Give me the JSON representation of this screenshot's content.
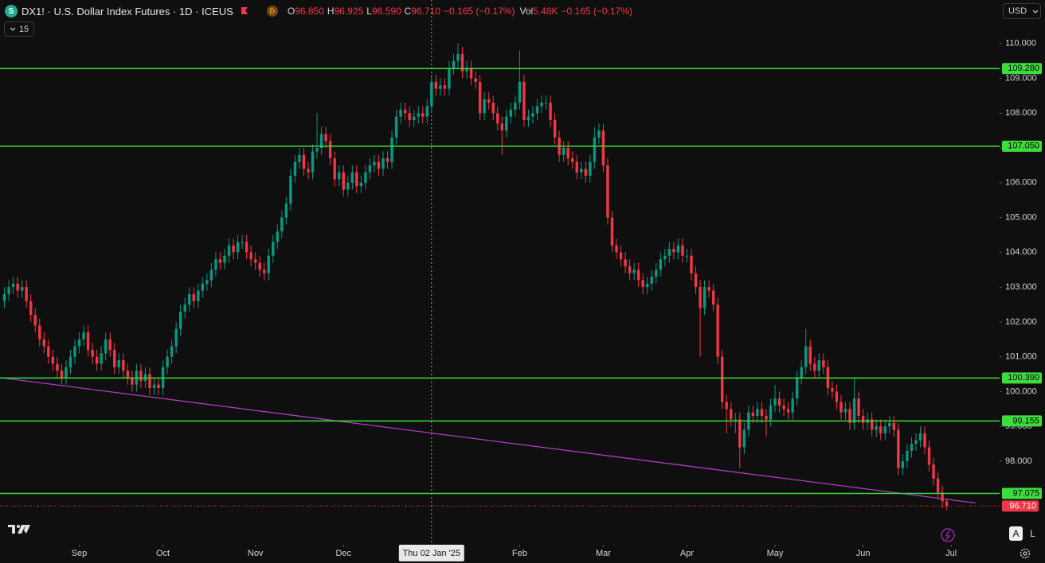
{
  "header": {
    "icon": "S",
    "symbol": "DX1! · U.S. Dollar Index Futures · 1D · ICEUS",
    "badge": "D",
    "ohlc": [
      {
        "label": "O",
        "value": "96.850"
      },
      {
        "label": "H",
        "value": "96.925"
      },
      {
        "label": "L",
        "value": "96.590"
      },
      {
        "label": "C",
        "value": "96.710"
      }
    ],
    "change": "−0.165 (−0.17%)",
    "volume_label": "Vol",
    "volume": "5.48K",
    "volume_change": "−0.165 (−0.17%)",
    "interval_toggle": "15",
    "currency": "USD",
    "axis_buttons": [
      "A",
      "L"
    ]
  },
  "chart_data": {
    "type": "candlestick",
    "up_color": "#089981",
    "down_color": "#f23645",
    "xlim": [
      -1,
      226
    ],
    "ylim": [
      95.6,
      111.25
    ],
    "xticks": [
      {
        "value": 17,
        "label": "Sep"
      },
      {
        "value": 36,
        "label": "Oct"
      },
      {
        "value": 57,
        "label": "Nov"
      },
      {
        "value": 77,
        "label": "Dec"
      },
      {
        "value": 117,
        "label": "Feb"
      },
      {
        "value": 136,
        "label": "Mar"
      },
      {
        "value": 155,
        "label": "Apr"
      },
      {
        "value": 175,
        "label": "May"
      },
      {
        "value": 195,
        "label": "Jun"
      },
      {
        "value": 215,
        "label": "Jul"
      }
    ],
    "yticks": [
      {
        "value": 98,
        "label": "98.000"
      },
      {
        "value": 99,
        "label": "99.000"
      },
      {
        "value": 100,
        "label": "100.000"
      },
      {
        "value": 101,
        "label": "101.000"
      },
      {
        "value": 102,
        "label": "102.000"
      },
      {
        "value": 103,
        "label": "103.000"
      },
      {
        "value": 104,
        "label": "104.000"
      },
      {
        "value": 105,
        "label": "105.000"
      },
      {
        "value": 106,
        "label": "106.000"
      },
      {
        "value": 107,
        "label": "107.000"
      },
      {
        "value": 108,
        "label": "108.000"
      },
      {
        "value": 109,
        "label": "109.000"
      },
      {
        "value": 110,
        "label": "110.000"
      }
    ],
    "crosshair": {
      "x": 97,
      "label": "Thu 02 Jan '25"
    },
    "level_color": "#3ddc3d",
    "levels": [
      {
        "value": 109.28,
        "label": "109.280"
      },
      {
        "value": 107.05,
        "label": "107.050"
      },
      {
        "value": 100.39,
        "label": "100.390"
      },
      {
        "value": 99.155,
        "label": "99.155"
      },
      {
        "value": 97.075,
        "label": "97.075"
      }
    ],
    "last_price": {
      "value": 96.71,
      "label": "96.710",
      "color": "#f23645"
    },
    "trendline": {
      "x": [
        -1,
        220.5
      ],
      "y": [
        100.4,
        96.8
      ],
      "color": "#b03ac4"
    },
    "open": [
      102.6,
      102.8,
      103.0,
      103.1,
      102.9,
      103.0,
      102.6,
      102.2,
      101.9,
      101.5,
      101.3,
      101.0,
      100.8,
      100.6,
      100.4,
      100.7,
      101.0,
      101.3,
      101.5,
      101.7,
      101.2,
      101.0,
      100.8,
      101.1,
      101.5,
      101.2,
      100.7,
      100.9,
      100.6,
      100.4,
      100.2,
      100.6,
      100.3,
      100.5,
      100.1,
      100.2,
      100.1,
      100.7,
      101.0,
      101.3,
      101.8,
      102.3,
      102.5,
      102.8,
      102.6,
      102.9,
      103.1,
      103.2,
      103.5,
      103.8,
      103.7,
      103.9,
      104.2,
      104.0,
      104.3,
      104.3,
      104.0,
      103.8,
      103.7,
      103.5,
      103.4,
      103.9,
      104.3,
      104.6,
      105.0,
      105.4,
      106.2,
      106.6,
      106.8,
      106.4,
      106.3,
      106.9,
      107.0,
      107.4,
      107.2,
      106.7,
      106.1,
      106.3,
      105.8,
      106.0,
      106.3,
      105.9,
      106.0,
      106.3,
      106.5,
      106.6,
      106.4,
      106.7,
      106.6,
      107.3,
      107.9,
      108.1,
      108.0,
      107.8,
      107.9,
      108.0,
      107.9,
      108.2,
      108.9,
      108.7,
      108.8,
      108.7,
      109.3,
      109.5,
      109.7,
      109.2,
      109.3,
      109.0,
      108.9,
      108.0,
      108.4,
      108.3,
      108.0,
      107.7,
      107.5,
      107.9,
      108.1,
      108.3,
      108.9,
      107.8,
      107.9,
      108.0,
      108.2,
      108.3,
      108.3,
      107.8,
      107.3,
      106.8,
      107.0,
      106.7,
      106.6,
      106.3,
      106.4,
      106.2,
      106.6,
      107.3,
      107.5,
      106.5,
      105.0,
      104.2,
      104.0,
      103.8,
      103.6,
      103.4,
      103.5,
      103.2,
      103.0,
      103.1,
      103.3,
      103.5,
      103.8,
      103.9,
      104.1,
      104.0,
      104.2,
      103.9,
      103.9,
      103.4,
      103.0,
      102.4,
      103.0,
      102.9,
      102.5,
      101.0,
      99.7,
      99.5,
      99.2,
      99.2,
      98.4,
      98.9,
      99.4,
      99.3,
      99.5,
      99.3,
      99.2,
      99.6,
      99.8,
      99.6,
      99.5,
      99.4,
      99.8,
      100.4,
      100.7,
      101.3,
      100.8,
      100.6,
      100.9,
      100.7,
      100.1,
      100.0,
      99.7,
      99.4,
      99.5,
      99.1,
      99.8,
      99.3,
      99.1,
      99.2,
      98.9,
      99.0,
      98.8,
      99.0,
      99.1,
      98.9,
      97.8,
      98.0,
      98.3,
      98.5,
      98.6,
      98.8,
      98.4,
      97.9,
      97.5,
      97.1,
      96.85
    ],
    "high": [
      103.0,
      103.2,
      103.3,
      103.3,
      103.2,
      103.2,
      102.8,
      102.4,
      102.1,
      101.7,
      101.5,
      101.2,
      101.0,
      100.8,
      100.9,
      101.2,
      101.5,
      101.7,
      101.9,
      101.9,
      101.4,
      101.2,
      101.3,
      101.7,
      101.7,
      101.4,
      101.1,
      101.1,
      100.8,
      100.6,
      100.8,
      100.8,
      100.7,
      100.7,
      100.4,
      100.4,
      100.9,
      101.2,
      101.5,
      102.0,
      102.5,
      102.7,
      103.0,
      103.0,
      103.1,
      103.3,
      103.4,
      103.7,
      104.0,
      104.0,
      104.1,
      104.4,
      104.4,
      104.5,
      104.5,
      104.5,
      104.2,
      104.0,
      103.9,
      103.7,
      104.1,
      104.5,
      104.8,
      105.2,
      105.6,
      106.4,
      106.8,
      107.0,
      107.0,
      106.6,
      107.1,
      108.0,
      107.6,
      107.6,
      107.4,
      106.9,
      106.5,
      106.5,
      106.2,
      106.5,
      106.5,
      106.2,
      106.5,
      106.7,
      106.8,
      106.8,
      106.9,
      106.9,
      107.5,
      108.1,
      108.3,
      108.3,
      108.2,
      108.1,
      108.2,
      108.2,
      108.4,
      109.1,
      109.1,
      109.0,
      109.0,
      109.5,
      109.7,
      110.0,
      109.9,
      109.5,
      109.5,
      109.2,
      109.1,
      108.6,
      108.6,
      108.5,
      108.2,
      107.9,
      108.1,
      108.3,
      108.5,
      109.8,
      109.1,
      108.1,
      108.2,
      108.4,
      108.5,
      108.5,
      108.5,
      108.0,
      107.5,
      107.2,
      107.2,
      106.9,
      106.8,
      106.6,
      106.6,
      106.8,
      107.6,
      107.7,
      107.7,
      106.7,
      105.2,
      104.4,
      104.2,
      104.0,
      103.8,
      103.7,
      103.7,
      103.4,
      103.3,
      103.5,
      103.7,
      104.0,
      104.1,
      104.3,
      104.3,
      104.4,
      104.4,
      104.1,
      104.1,
      103.6,
      103.2,
      103.2,
      103.2,
      103.1,
      102.7,
      101.2,
      99.9,
      99.7,
      99.4,
      99.4,
      99.1,
      99.6,
      99.6,
      99.7,
      99.7,
      99.5,
      99.8,
      100.2,
      100.0,
      99.8,
      99.7,
      100.0,
      100.6,
      100.9,
      101.8,
      101.5,
      101.0,
      101.1,
      101.1,
      100.9,
      100.3,
      100.2,
      99.9,
      99.7,
      99.7,
      100.4,
      100.0,
      99.5,
      99.4,
      99.4,
      99.2,
      99.2,
      99.2,
      99.3,
      99.3,
      99.1,
      98.2,
      98.5,
      98.7,
      98.8,
      99.0,
      99.0,
      98.6,
      98.1,
      97.7,
      97.3,
      96.925
    ],
    "low": [
      102.4,
      102.6,
      102.8,
      102.7,
      102.7,
      102.4,
      102.0,
      101.7,
      101.3,
      101.1,
      100.8,
      100.6,
      100.4,
      100.2,
      100.2,
      100.5,
      100.8,
      101.1,
      101.3,
      101.0,
      100.8,
      100.6,
      100.6,
      100.9,
      101.0,
      100.5,
      100.5,
      100.4,
      100.2,
      100.0,
      100.0,
      100.1,
      100.1,
      99.9,
      99.9,
      99.9,
      99.9,
      100.5,
      100.8,
      101.1,
      101.6,
      102.1,
      102.3,
      102.4,
      102.4,
      102.7,
      102.9,
      103.0,
      103.3,
      103.5,
      103.5,
      103.7,
      103.8,
      103.8,
      104.1,
      103.8,
      103.6,
      103.5,
      103.3,
      103.2,
      103.2,
      103.7,
      104.1,
      104.4,
      104.8,
      105.2,
      106.0,
      106.4,
      106.2,
      106.1,
      106.1,
      106.7,
      106.8,
      107.0,
      106.5,
      105.9,
      105.9,
      105.6,
      105.6,
      105.8,
      105.7,
      105.7,
      105.8,
      106.1,
      106.3,
      106.2,
      106.2,
      106.4,
      106.4,
      107.1,
      107.7,
      107.8,
      107.6,
      107.6,
      107.7,
      107.7,
      107.7,
      108.0,
      108.5,
      108.5,
      108.5,
      108.5,
      109.1,
      109.3,
      109.0,
      109.0,
      108.8,
      108.7,
      107.8,
      107.8,
      108.1,
      107.8,
      107.5,
      106.8,
      107.3,
      107.7,
      107.9,
      108.1,
      107.6,
      107.6,
      107.7,
      107.8,
      108.0,
      108.1,
      107.6,
      107.1,
      106.6,
      106.6,
      106.5,
      106.4,
      106.1,
      106.1,
      106.0,
      106.0,
      106.4,
      107.1,
      106.3,
      104.8,
      104.0,
      103.8,
      103.6,
      103.4,
      103.2,
      103.2,
      103.0,
      102.8,
      102.8,
      102.9,
      103.1,
      103.3,
      103.6,
      103.7,
      103.8,
      103.8,
      103.7,
      103.7,
      103.2,
      102.8,
      101.0,
      102.2,
      102.7,
      102.3,
      100.8,
      99.5,
      98.8,
      99.0,
      98.8,
      97.8,
      98.2,
      98.7,
      99.1,
      99.1,
      99.1,
      98.7,
      99.0,
      99.4,
      99.4,
      99.3,
      99.2,
      99.2,
      99.6,
      100.2,
      100.5,
      100.6,
      100.4,
      100.4,
      100.5,
      99.9,
      99.8,
      99.5,
      99.2,
      99.2,
      98.9,
      98.9,
      99.1,
      98.9,
      98.9,
      98.7,
      98.7,
      98.6,
      98.6,
      98.8,
      98.7,
      97.6,
      97.6,
      97.8,
      98.1,
      98.3,
      98.4,
      98.2,
      97.7,
      97.3,
      96.9,
      96.65,
      96.59
    ],
    "close": [
      102.8,
      103.0,
      103.1,
      102.9,
      103.0,
      102.6,
      102.2,
      101.9,
      101.5,
      101.3,
      101.0,
      100.8,
      100.6,
      100.4,
      100.7,
      101.0,
      101.3,
      101.5,
      101.7,
      101.2,
      101.0,
      100.8,
      101.1,
      101.5,
      101.2,
      100.7,
      100.9,
      100.6,
      100.4,
      100.2,
      100.6,
      100.3,
      100.5,
      100.1,
      100.2,
      100.1,
      100.7,
      101.0,
      101.3,
      101.8,
      102.3,
      102.5,
      102.8,
      102.6,
      102.9,
      103.1,
      103.2,
      103.5,
      103.8,
      103.7,
      103.9,
      104.2,
      104.0,
      104.3,
      104.3,
      104.0,
      103.8,
      103.7,
      103.5,
      103.4,
      103.9,
      104.3,
      104.6,
      105.0,
      105.4,
      106.2,
      106.6,
      106.8,
      106.4,
      106.3,
      106.9,
      107.0,
      107.4,
      107.2,
      106.7,
      106.1,
      106.3,
      105.8,
      106.0,
      106.3,
      105.9,
      106.0,
      106.3,
      106.5,
      106.6,
      106.4,
      106.7,
      106.6,
      107.3,
      107.9,
      108.1,
      108.0,
      107.8,
      107.9,
      108.0,
      107.9,
      108.2,
      108.9,
      108.7,
      108.8,
      108.7,
      109.3,
      109.5,
      109.7,
      109.2,
      109.3,
      109.0,
      108.9,
      108.0,
      108.4,
      108.3,
      108.0,
      107.7,
      107.5,
      107.9,
      108.1,
      108.3,
      108.9,
      107.8,
      107.9,
      108.0,
      108.2,
      108.3,
      108.3,
      107.8,
      107.3,
      106.8,
      107.0,
      106.7,
      106.6,
      106.3,
      106.4,
      106.2,
      106.6,
      107.3,
      107.5,
      106.5,
      105.0,
      104.2,
      104.0,
      103.8,
      103.6,
      103.4,
      103.5,
      103.2,
      103.0,
      103.1,
      103.3,
      103.5,
      103.8,
      103.9,
      104.1,
      104.0,
      104.2,
      103.9,
      103.9,
      103.4,
      103.0,
      102.4,
      103.0,
      102.9,
      102.5,
      101.0,
      99.7,
      99.5,
      99.2,
      99.2,
      98.4,
      98.9,
      99.4,
      99.3,
      99.5,
      99.3,
      99.2,
      99.6,
      99.8,
      99.6,
      99.5,
      99.4,
      99.8,
      100.4,
      100.7,
      101.3,
      100.8,
      100.6,
      100.9,
      100.7,
      100.1,
      100.0,
      99.7,
      99.4,
      99.5,
      99.1,
      99.8,
      99.3,
      99.1,
      99.2,
      98.9,
      99.0,
      98.8,
      99.0,
      99.1,
      98.9,
      97.8,
      98.0,
      98.3,
      98.5,
      98.6,
      98.8,
      98.4,
      97.9,
      97.5,
      97.1,
      96.85,
      96.71
    ]
  }
}
